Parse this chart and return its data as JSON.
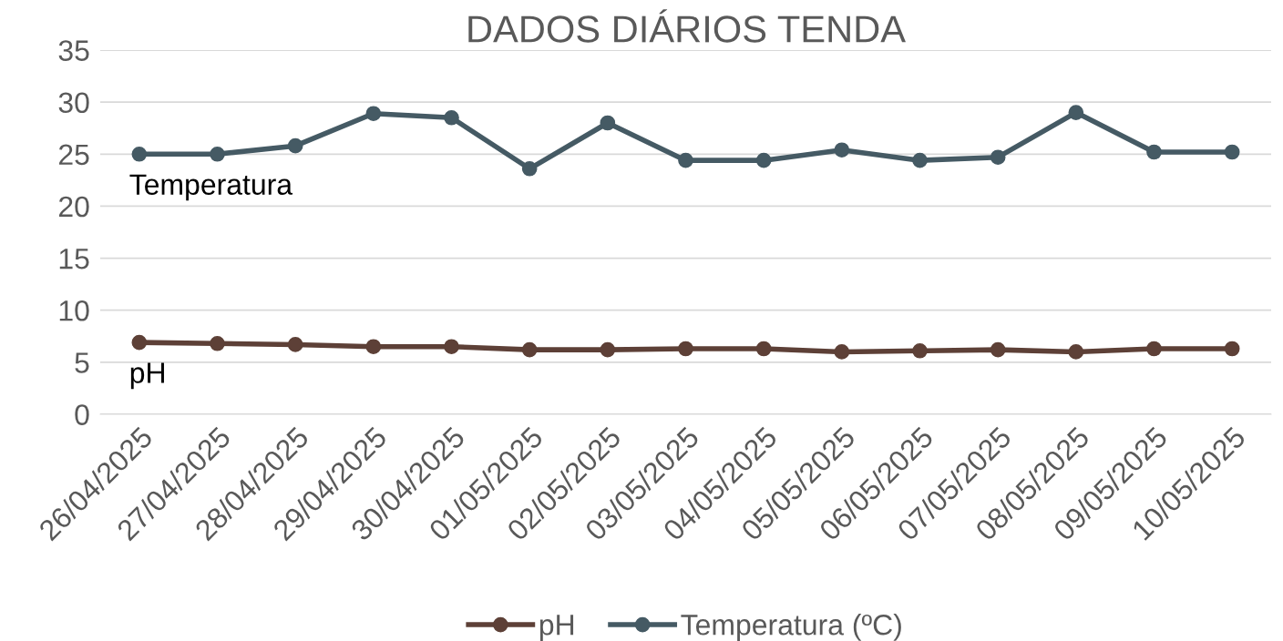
{
  "chart_data": {
    "type": "line",
    "title": "DADOS DIÁRIOS TENDA",
    "categories": [
      "26/04/2025",
      "27/04/2025",
      "28/04/2025",
      "29/04/2025",
      "30/04/2025",
      "01/05/2025",
      "02/05/2025",
      "03/05/2025",
      "04/05/2025",
      "05/05/2025",
      "06/05/2025",
      "07/05/2025",
      "08/05/2025",
      "09/05/2025",
      "10/05/2025"
    ],
    "series": [
      {
        "name": "pH",
        "color": "#5d4037",
        "values": [
          6.9,
          6.8,
          6.7,
          6.5,
          6.5,
          6.2,
          6.2,
          6.3,
          6.3,
          6.0,
          6.1,
          6.2,
          6.0,
          6.3,
          6.3
        ]
      },
      {
        "name": "Temperatura (ºC)",
        "color": "#455a64",
        "values": [
          25.0,
          25.0,
          25.8,
          28.9,
          28.5,
          23.6,
          28.0,
          24.4,
          24.4,
          25.4,
          24.4,
          24.7,
          29.0,
          25.2,
          25.2
        ]
      }
    ],
    "annotations": [
      "pH",
      "Temperatura"
    ],
    "ylim": [
      0,
      35
    ],
    "yticks": [
      0,
      5,
      10,
      15,
      20,
      25,
      30,
      35
    ],
    "grid": "y",
    "legend": "bottom",
    "marker": "circle",
    "line_style": "solid"
  }
}
